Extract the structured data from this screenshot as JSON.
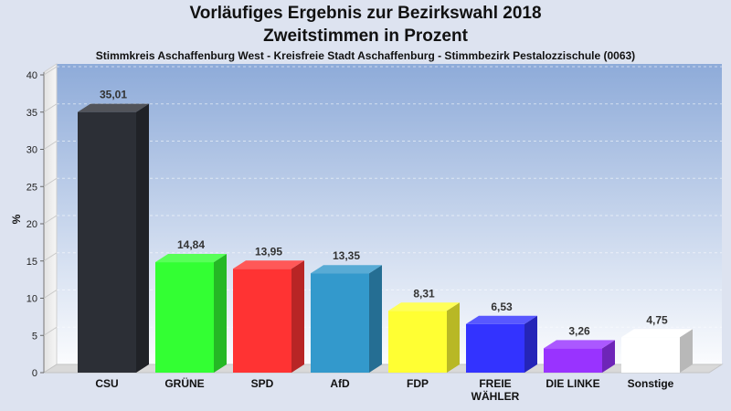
{
  "chart_data": {
    "type": "bar",
    "title": "Vorläufiges Ergebnis zur Bezirkswahl 2018",
    "subtitle": "Zweitstimmen in Prozent",
    "subtitle2": "Stimmkreis Aschaffenburg West - Kreisfreie Stadt Aschaffenburg - Stimmbezirk Pestalozzischule (0063)",
    "ylabel": "%",
    "xlabel": "",
    "ylim": [
      0,
      40
    ],
    "yticks": [
      0,
      5,
      10,
      15,
      20,
      25,
      30,
      35,
      40
    ],
    "grid": true,
    "categories": [
      "CSU",
      "GRÜNE",
      "SPD",
      "AfD",
      "FDP",
      "FREIE WÄHLER",
      "DIE LINKE",
      "Sonstige"
    ],
    "category_lines": [
      [
        "CSU"
      ],
      [
        "GRÜNE"
      ],
      [
        "SPD"
      ],
      [
        "AfD"
      ],
      [
        "FDP"
      ],
      [
        "FREIE",
        "WÄHLER"
      ],
      [
        "DIE LINKE"
      ],
      [
        "Sonstige"
      ]
    ],
    "values": [
      35.01,
      14.84,
      13.95,
      13.35,
      8.31,
      6.53,
      3.26,
      4.75
    ],
    "value_labels": [
      "35,01",
      "14,84",
      "13,95",
      "13,35",
      "8,31",
      "6,53",
      "3,26",
      "4,75"
    ],
    "colors": [
      "#2c2f36",
      "#33ff33",
      "#ff3333",
      "#3399cc",
      "#ffff33",
      "#3333ff",
      "#9933ff",
      "#ffffff"
    ]
  }
}
